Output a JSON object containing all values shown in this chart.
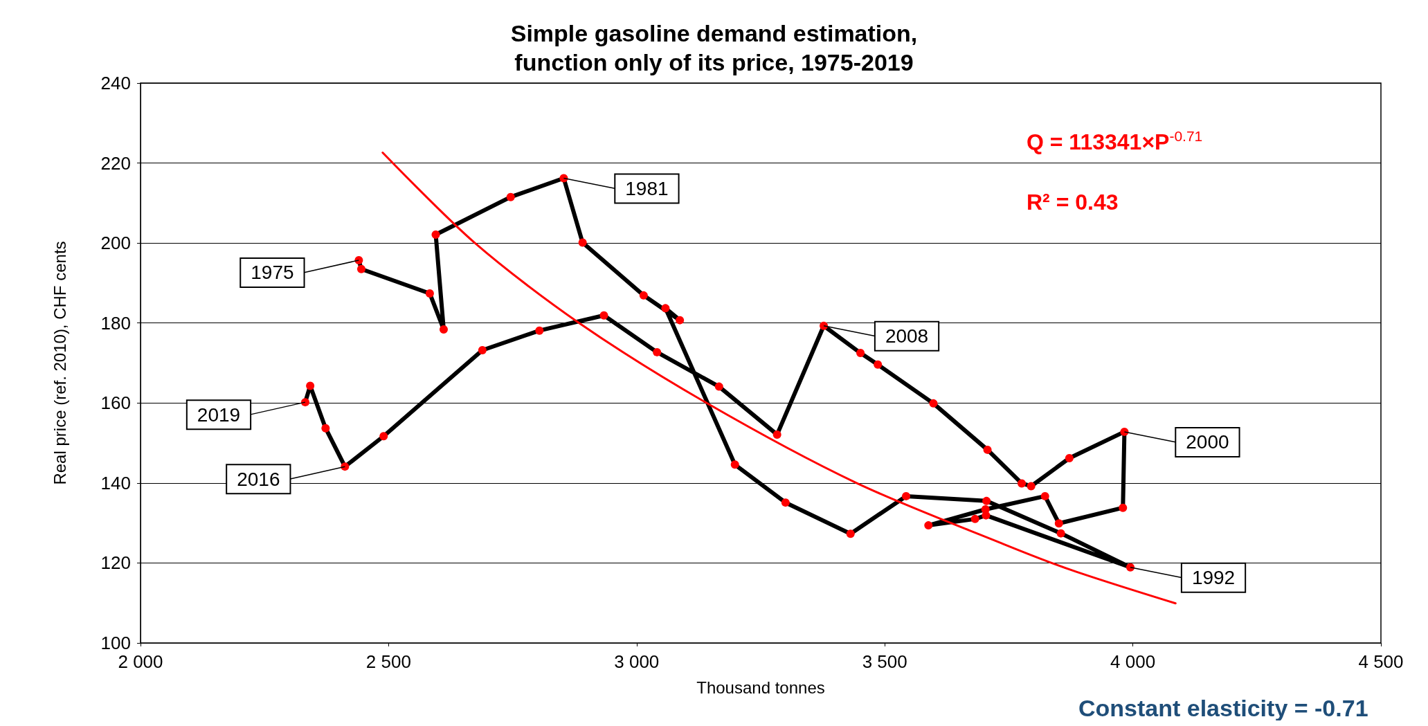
{
  "chart_data": {
    "type": "line",
    "title": "Simple gasoline demand estimation,\nfunction only of its price, 1975-2019",
    "xlabel": "Thousand tonnes",
    "ylabel": "Real price (ref. 2010), CHF cents",
    "xlim": [
      2000,
      4500
    ],
    "xticks": [
      {
        "value": 2000,
        "label": "2 000"
      },
      {
        "value": 2500,
        "label": "2 500"
      },
      {
        "value": 3000,
        "label": "3 000"
      },
      {
        "value": 3500,
        "label": "3 500"
      },
      {
        "value": 4000,
        "label": "4 000"
      },
      {
        "value": 4500,
        "label": "4 500"
      }
    ],
    "ylim": [
      100,
      240
    ],
    "yticks": [
      100,
      120,
      140,
      160,
      180,
      200,
      220,
      240
    ],
    "grid": "y",
    "series": [
      {
        "color": "#000000",
        "marker": "circle",
        "x": [
          2440,
          2445,
          2583,
          2611,
          2595,
          2746,
          2853,
          2891,
          3014,
          3087,
          3058,
          3198,
          3300,
          3431,
          3543,
          3705,
          3855,
          3995,
          3704,
          3682,
          3588,
          3703,
          3823,
          3851,
          3980,
          3983,
          3872,
          3795,
          3776,
          3707,
          3598,
          3486,
          3451,
          3377,
          3283,
          3166,
          3041,
          2934,
          2804,
          2689,
          2490,
          2412,
          2373,
          2342,
          2332
        ],
        "values": [
          195.7,
          193.5,
          187.4,
          178.4,
          202.1,
          211.5,
          216.2,
          200.1,
          186.9,
          180.7,
          183.7,
          144.6,
          135.1,
          127.3,
          136.7,
          135.5,
          127.4,
          118.9,
          131.9,
          131.0,
          129.4,
          133.4,
          136.7,
          129.9,
          133.8,
          152.8,
          146.2,
          139.2,
          139.9,
          148.3,
          159.9,
          169.6,
          172.5,
          179.3,
          152.1,
          164.1,
          172.7,
          181.9,
          178.1,
          173.2,
          151.7,
          144.1,
          153.7,
          164.3,
          160.2
        ],
        "colors": [
          "#ff0000",
          "#ff0000",
          "#ff0000",
          "#ff0000",
          "#ff0000",
          "#ff0000",
          "#ff0000",
          "#ff0000",
          "#ff0000",
          "#ff0000",
          "#ff0000",
          "#ff0000",
          "#ff0000",
          "#ff0000",
          "#ff0000",
          "#ff0000",
          "#ff0000",
          "#ff0000",
          "#ff0000",
          "#ff0000",
          "#ff0000",
          "#ff0000",
          "#ff0000",
          "#ff0000",
          "#ff0000",
          "#ff0000",
          "#ff0000",
          "#ff0000",
          "#ff0000",
          "#ff0000",
          "#ff0000",
          "#ff0000",
          "#ff0000",
          "#ff0000",
          "#ff0000",
          "#ff0000",
          "#ff0000",
          "#ff0000",
          "#ff0000",
          "#ff0000",
          "#ff0000",
          "#ff0000",
          "#ff0000",
          "#ff0000",
          "#ff0000"
        ]
      },
      {
        "color": "#ff0000",
        "marker": "none",
        "x": [
          2488,
          2674,
          2884,
          3141,
          3443,
          3740,
          3879,
          4086
        ],
        "values": [
          222.6,
          200,
          180,
          160,
          140,
          124.7,
          118.1,
          109.9
        ]
      }
    ],
    "annotations": [
      {
        "text": "1975",
        "x": 2440,
        "y": 195.7
      },
      {
        "text": "1981",
        "x": 2853,
        "y": 216.2
      },
      {
        "text": "1992",
        "x": 3995,
        "y": 118.9
      },
      {
        "text": "2000",
        "x": 3983,
        "y": 152.8
      },
      {
        "text": "2008",
        "x": 3377,
        "y": 179.3
      },
      {
        "text": "2016",
        "x": 2412,
        "y": 144.1
      },
      {
        "text": "2019",
        "x": 2332,
        "y": 160.2
      },
      "Q = 113341×P$^{-0.71}$",
      "R² = 0.43",
      "Constant elasticity = -0.71"
    ]
  }
}
